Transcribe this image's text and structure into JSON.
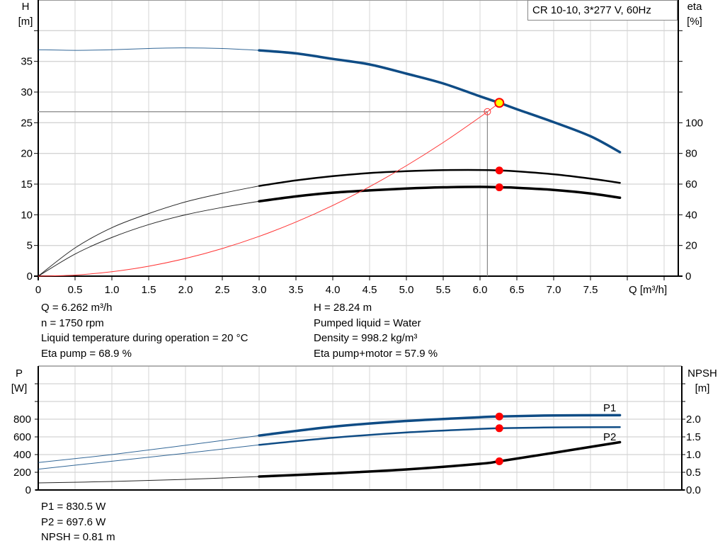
{
  "legend_title": "CR 10-10, 3*277 V, 60Hz",
  "colors": {
    "head": "#0f4c85",
    "power": "#0f4c85",
    "efficiency": "#000000",
    "npsh": "#000000",
    "system": "#ff3333",
    "duty_point": "#ff0000",
    "duty_point_fill": "#ffff00",
    "grid": "#d4d4d4"
  },
  "info": {
    "left": [
      "Q = 6.262 m³/h",
      "n = 1750 rpm",
      "Liquid temperature during operation = 20 °C",
      "Eta pump = 68.9 %"
    ],
    "right": [
      "H = 28.24 m",
      "Pumped liquid = Water",
      "Density = 998.2 kg/m³",
      "Eta pump+motor = 57.9 %"
    ],
    "power": [
      "P1 = 830.5 W",
      "P2 = 697.6 W",
      "NPSH = 0.81 m"
    ]
  },
  "chart_data": [
    {
      "type": "line",
      "title": "",
      "xlabel": "Q [m³/h]",
      "ylabel": "H",
      "yunit": "[m]",
      "y2label": "eta",
      "y2unit": "[%]",
      "xlim": [
        0,
        8.7
      ],
      "ylim": [
        0,
        45
      ],
      "y2lim": [
        0,
        180
      ],
      "grid": true,
      "xticks": [
        "0",
        "0.5",
        "1.0",
        "1.5",
        "2.0",
        "2.5",
        "3.0",
        "3.5",
        "4.0",
        "4.5",
        "5.0",
        "5.5",
        "6.0",
        "6.5",
        "7.0",
        "7.5"
      ],
      "yticks": [
        "0",
        "5",
        "10",
        "15",
        "20",
        "25",
        "30",
        "35"
      ],
      "y2ticks": [
        "0",
        "20",
        "40",
        "60",
        "80",
        "100"
      ],
      "series": [
        {
          "id": "head",
          "axis": "left",
          "color": "#0f4c85",
          "thick_from": 3.0,
          "points": [
            [
              0,
              36.9
            ],
            [
              0.5,
              36.8
            ],
            [
              1,
              36.9
            ],
            [
              1.5,
              37.1
            ],
            [
              2,
              37.2
            ],
            [
              2.5,
              37.1
            ],
            [
              3,
              36.8
            ],
            [
              3.5,
              36.3
            ],
            [
              4,
              35.4
            ],
            [
              4.5,
              34.5
            ],
            [
              5,
              33.0
            ],
            [
              5.5,
              31.4
            ],
            [
              6,
              29.3
            ],
            [
              6.262,
              28.24
            ],
            [
              6.5,
              27.2
            ],
            [
              7,
              25.1
            ],
            [
              7.5,
              22.8
            ],
            [
              7.9,
              20.2
            ]
          ]
        },
        {
          "id": "eta-pump",
          "axis": "right",
          "color": "#000000",
          "thick_from": 3.0,
          "points": [
            [
              0,
              0
            ],
            [
              0.5,
              18.4
            ],
            [
              1,
              31.6
            ],
            [
              1.5,
              40.8
            ],
            [
              2,
              48.4
            ],
            [
              2.5,
              54
            ],
            [
              3,
              58.8
            ],
            [
              3.5,
              62.4
            ],
            [
              4,
              65.2
            ],
            [
              4.5,
              67.2
            ],
            [
              5,
              68.4
            ],
            [
              5.5,
              69.1
            ],
            [
              6,
              69.2
            ],
            [
              6.262,
              68.9
            ],
            [
              6.5,
              68.3
            ],
            [
              7,
              66.4
            ],
            [
              7.5,
              63.6
            ],
            [
              7.9,
              60.8
            ]
          ]
        },
        {
          "id": "eta-pump-motor",
          "axis": "right",
          "color": "#000000",
          "thick_from": 3.0,
          "points": [
            [
              0,
              0
            ],
            [
              0.5,
              14.4
            ],
            [
              1,
              25.2
            ],
            [
              1.5,
              33.6
            ],
            [
              2,
              40
            ],
            [
              2.5,
              44.8
            ],
            [
              3,
              48.8
            ],
            [
              3.5,
              52
            ],
            [
              4,
              54.4
            ],
            [
              4.5,
              55.9
            ],
            [
              5,
              57.1
            ],
            [
              5.5,
              57.9
            ],
            [
              6,
              58.2
            ],
            [
              6.262,
              57.9
            ],
            [
              6.5,
              57.6
            ],
            [
              7,
              56.2
            ],
            [
              7.5,
              53.9
            ],
            [
              7.9,
              51.1
            ]
          ]
        },
        {
          "id": "system-curve",
          "axis": "left",
          "color": "#ff3333",
          "points": [
            [
              0,
              0
            ],
            [
              0.5,
              0.18
            ],
            [
              1,
              0.72
            ],
            [
              1.5,
              1.62
            ],
            [
              2,
              2.88
            ],
            [
              2.5,
              4.5
            ],
            [
              3,
              6.48
            ],
            [
              3.5,
              8.82
            ],
            [
              4,
              11.52
            ],
            [
              4.5,
              14.58
            ],
            [
              5,
              18.0
            ],
            [
              5.5,
              21.78
            ],
            [
              6,
              25.92
            ],
            [
              6.262,
              28.24
            ]
          ]
        }
      ],
      "duty_point": {
        "Q": 6.262,
        "H": 28.24,
        "eta_pump": 68.9,
        "eta_pump_motor": 57.9
      },
      "requested_point": {
        "Q": 6.1,
        "H": 26.8
      }
    },
    {
      "type": "line",
      "title": "",
      "ylabel": "P",
      "yunit": "[W]",
      "y2label": "NPSH",
      "y2unit": "[m]",
      "xlim": [
        0,
        8.74
      ],
      "ylim": [
        0,
        1400
      ],
      "y2lim": [
        0,
        3.5
      ],
      "grid": true,
      "yticks": [
        "0",
        "200",
        "400",
        "600",
        "800"
      ],
      "y2ticks": [
        "0.0",
        "0.5",
        "1.0",
        "1.5",
        "2.0"
      ],
      "series": [
        {
          "id": "p1",
          "name": "P1",
          "axis": "left",
          "color": "#0f4c85",
          "thick_from": 3.0,
          "points": [
            [
              0,
              310
            ],
            [
              1,
              400
            ],
            [
              2,
              505
            ],
            [
              3,
              615
            ],
            [
              4,
              715
            ],
            [
              5,
              780
            ],
            [
              6,
              822
            ],
            [
              6.262,
              830.5
            ],
            [
              7,
              842
            ],
            [
              7.9,
              845
            ]
          ]
        },
        {
          "id": "p2",
          "name": "P2",
          "axis": "left",
          "color": "#0f4c85",
          "thick_from": 3.0,
          "points": [
            [
              0,
              235
            ],
            [
              1,
              325
            ],
            [
              2,
              415
            ],
            [
              3,
              510
            ],
            [
              4,
              590
            ],
            [
              5,
              650
            ],
            [
              6,
              690
            ],
            [
              6.262,
              697.6
            ],
            [
              7,
              707
            ],
            [
              7.9,
              710
            ]
          ]
        },
        {
          "id": "npsh",
          "axis": "right",
          "color": "#000000",
          "thick_from": 3.0,
          "points": [
            [
              0,
              0.2
            ],
            [
              1,
              0.24
            ],
            [
              2,
              0.3
            ],
            [
              3,
              0.38
            ],
            [
              4,
              0.47
            ],
            [
              5,
              0.58
            ],
            [
              6,
              0.74
            ],
            [
              6.262,
              0.81
            ],
            [
              7,
              1.05
            ],
            [
              7.9,
              1.35
            ]
          ]
        }
      ],
      "duty_point": {
        "Q": 6.262,
        "P1": 830.5,
        "P2": 697.6,
        "NPSH": 0.81
      }
    }
  ]
}
